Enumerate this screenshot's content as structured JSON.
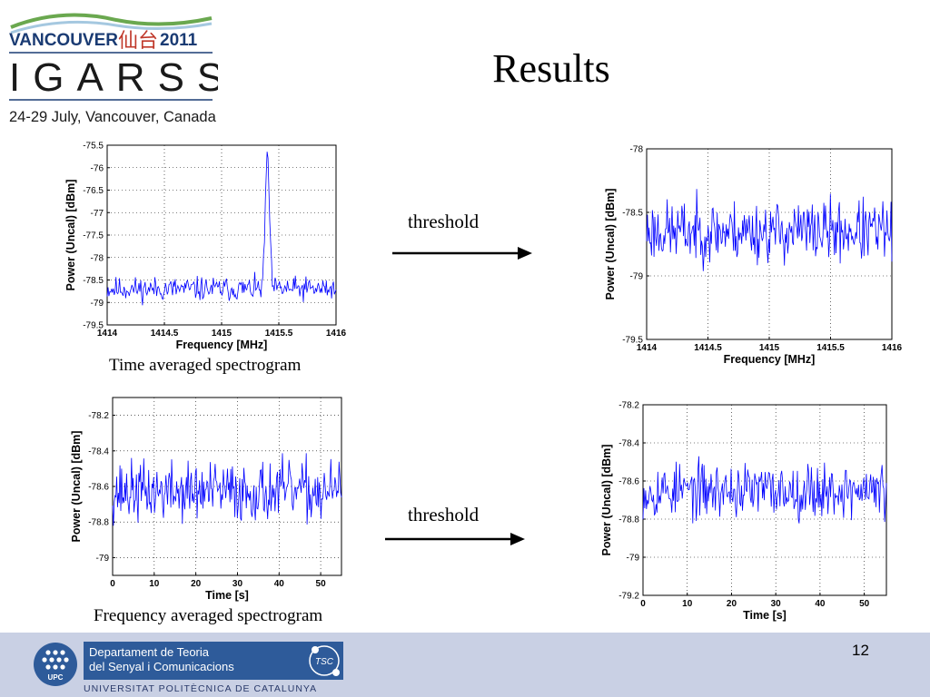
{
  "logo": {
    "line1": "VANCOUVER",
    "cjk": "仙台",
    "year": "2011",
    "name": "IGARSS",
    "dates": "24-29 July, Vancouver, Canada"
  },
  "slide_title": "Results",
  "arrows": {
    "top_label": "threshold",
    "bottom_label": "threshold"
  },
  "captions": {
    "top_left": "Time averaged spectrogram",
    "bottom_left": "Frequency averaged spectrogram"
  },
  "footer": {
    "dept_line1": "Departament de Teoria",
    "dept_line2": "del Senyal i Comunicacions",
    "university": "UNIVERSITAT POLITÈCNICA DE CATALUNYA",
    "upc": "UPC",
    "tsc": "TSC",
    "page_number": "12"
  },
  "colors": {
    "line": "#0000ff",
    "footer_bg": "#c9d0e4",
    "dept_box": "#2e5b9a"
  },
  "chart_data": [
    {
      "id": "tl",
      "type": "line",
      "xlabel": "Frequency [MHz]",
      "ylabel": "Power (Uncal) [dBm]",
      "xlim": [
        1414,
        1416
      ],
      "ylim": [
        -79.5,
        -75.5
      ],
      "xticks": [
        1414,
        1414.5,
        1415,
        1415.5,
        1416
      ],
      "xticklabels": [
        "1414",
        "1414.5",
        "1415",
        "1415.5",
        "1416"
      ],
      "yticks": [
        -79.5,
        -79,
        -78.5,
        -78,
        -77.5,
        -77,
        -76.5,
        -76,
        -75.5
      ],
      "yticklabels": [
        "-79.5",
        "-79",
        "-78.5",
        "-78",
        "-77.5",
        "-77",
        "-76.5",
        "-76",
        "-75.5"
      ],
      "grid": true,
      "series": [
        {
          "n": 260,
          "base": -78.7,
          "noise": 0.22,
          "seed": 11,
          "peak_x": 1415.4,
          "peak_y": -75.7,
          "peak_width": 0.025
        }
      ]
    },
    {
      "id": "tr",
      "type": "line",
      "xlabel": "Frequency [MHz]",
      "ylabel": "Power (Uncal) [dBm]",
      "xlim": [
        1414,
        1416
      ],
      "ylim": [
        -79.5,
        -78
      ],
      "xticks": [
        1414,
        1414.5,
        1415,
        1415.5,
        1416
      ],
      "xticklabels": [
        "1414",
        "1414.5",
        "1415",
        "1415.5",
        "1416"
      ],
      "yticks": [
        -79.5,
        -79,
        -78.5,
        -78
      ],
      "yticklabels": [
        "-79.5",
        "-79",
        "-78.5",
        "-78"
      ],
      "grid": true,
      "series": [
        {
          "n": 300,
          "base": -78.65,
          "noise": 0.2,
          "seed": 23
        }
      ]
    },
    {
      "id": "bl",
      "type": "line",
      "xlabel": "Time [s]",
      "ylabel": "Power (Uncal) [dBm]",
      "xlim": [
        0,
        55
      ],
      "ylim": [
        -79.1,
        -78.1
      ],
      "xticks": [
        0,
        10,
        20,
        30,
        40,
        50
      ],
      "xticklabels": [
        "0",
        "10",
        "20",
        "30",
        "40",
        "50"
      ],
      "yticks": [
        -79,
        -78.8,
        -78.6,
        -78.4,
        -78.2
      ],
      "yticklabels": [
        "-79",
        "-78.8",
        "-78.6",
        "-78.4",
        "-78.2"
      ],
      "grid": true,
      "series": [
        {
          "n": 280,
          "base": -78.63,
          "noise": 0.14,
          "seed": 37
        }
      ]
    },
    {
      "id": "br",
      "type": "line",
      "xlabel": "Time [s]",
      "ylabel": "Power (Uncal) [dBm]",
      "xlim": [
        0,
        55
      ],
      "ylim": [
        -79.2,
        -78.2
      ],
      "xticks": [
        0,
        10,
        20,
        30,
        40,
        50
      ],
      "xticklabels": [
        "0",
        "10",
        "20",
        "30",
        "40",
        "50"
      ],
      "yticks": [
        -79.2,
        -79,
        -78.8,
        -78.6,
        -78.4,
        -78.2
      ],
      "yticklabels": [
        "-79.2",
        "-79",
        "-78.8",
        "-78.6",
        "-78.4",
        "-78.2"
      ],
      "grid": true,
      "series": [
        {
          "n": 280,
          "base": -78.65,
          "noise": 0.12,
          "seed": 53
        }
      ]
    }
  ]
}
